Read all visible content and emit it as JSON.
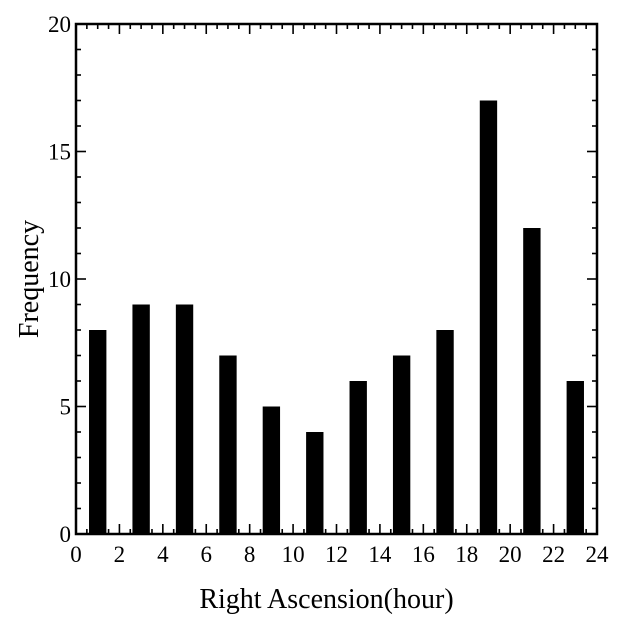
{
  "chart_data": {
    "type": "bar",
    "title": "",
    "xlabel": "Right  Ascension(hour)",
    "ylabel": "Frequency",
    "x": [
      1,
      3,
      5,
      7,
      9,
      11,
      13,
      15,
      17,
      19,
      21,
      23
    ],
    "values": [
      8,
      9,
      9,
      7,
      5,
      4,
      6,
      7,
      8,
      17,
      12,
      6
    ],
    "bar_width": 0.8,
    "xlim": [
      0,
      24
    ],
    "ylim": [
      0,
      20
    ],
    "x_ticks": [
      0,
      2,
      4,
      6,
      8,
      10,
      12,
      14,
      16,
      18,
      20,
      22,
      24
    ],
    "y_ticks": [
      0,
      5,
      10,
      15,
      20
    ],
    "x_tick_labels": [
      "0",
      "2",
      "4",
      "6",
      "8",
      "10",
      "12",
      "14",
      "16",
      "18",
      "20",
      "22",
      "24"
    ],
    "y_tick_labels": [
      "0",
      "5",
      "10",
      "15",
      "20"
    ],
    "grid": false,
    "bar_color": "#000000"
  }
}
